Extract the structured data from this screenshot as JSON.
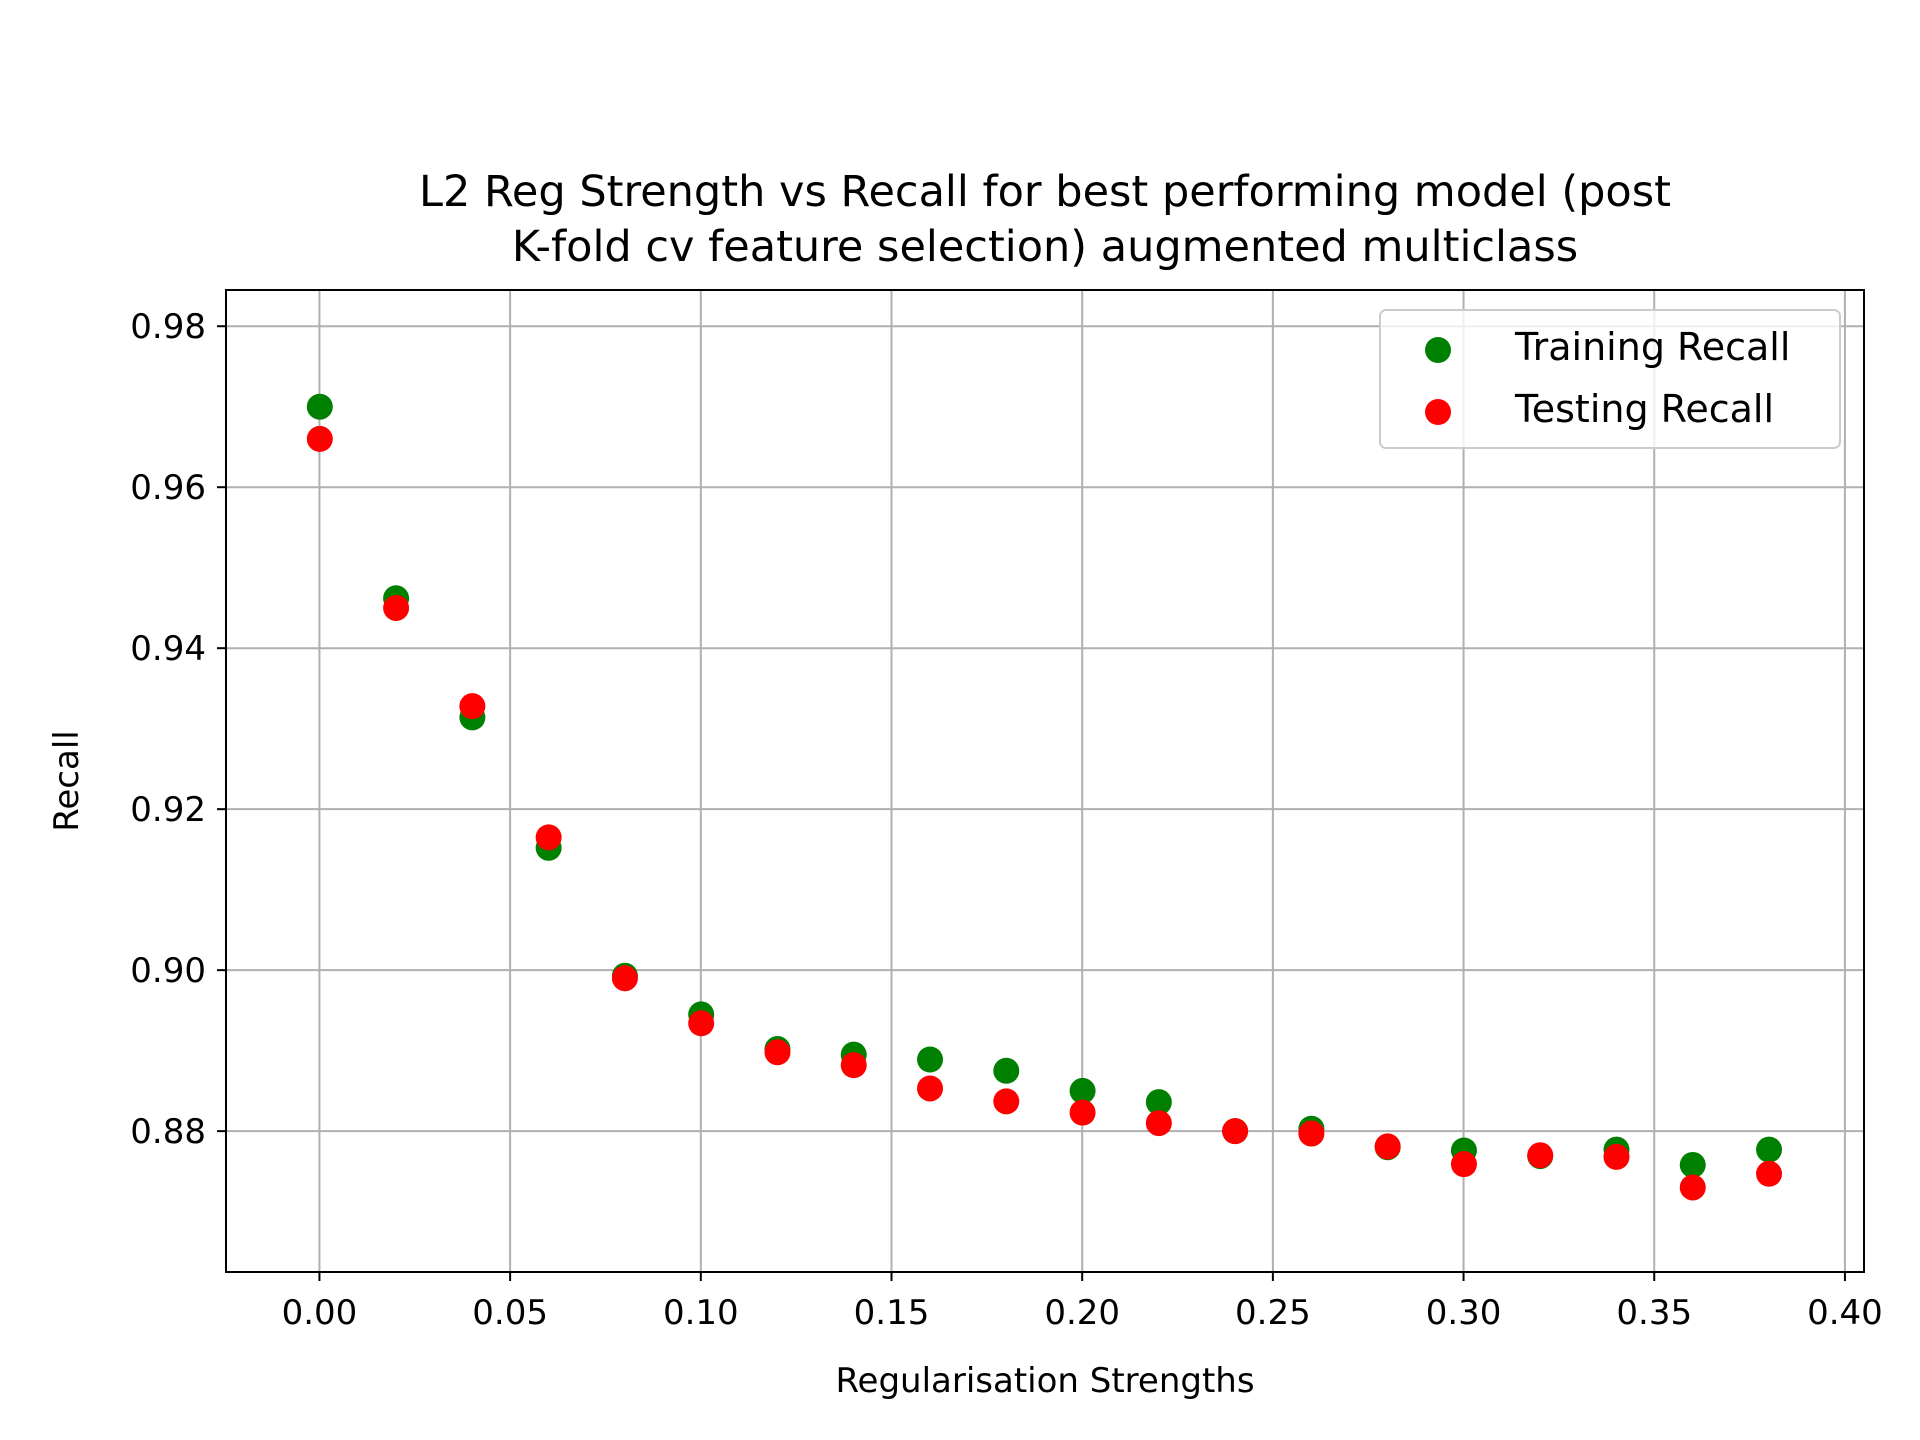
{
  "chart_data": {
    "type": "scatter",
    "title_lines": [
      "L2 Reg Strength vs Recall for best performing model (post",
      "K-fold cv feature selection) augmented multiclass"
    ],
    "xlabel": "Regularisation Strengths",
    "ylabel": "Recall",
    "xlim": [
      -0.0245,
      0.405
    ],
    "ylim": [
      0.8625,
      0.9845
    ],
    "xticks": [
      0.0,
      0.05,
      0.1,
      0.15,
      0.2,
      0.25,
      0.3,
      0.35,
      0.4
    ],
    "xtick_labels": [
      "0.00",
      "0.05",
      "0.10",
      "0.15",
      "0.20",
      "0.25",
      "0.30",
      "0.35",
      "0.40"
    ],
    "yticks": [
      0.88,
      0.9,
      0.92,
      0.94,
      0.96,
      0.98
    ],
    "ytick_labels": [
      "0.88",
      "0.90",
      "0.92",
      "0.94",
      "0.96",
      "0.98"
    ],
    "grid": true,
    "legend_position": "top-right",
    "x": [
      0.0001,
      0.0201,
      0.0401,
      0.0601,
      0.0801,
      0.1001,
      0.1201,
      0.1401,
      0.1601,
      0.1801,
      0.2001,
      0.2201,
      0.2401,
      0.2601,
      0.2801,
      0.3001,
      0.3201,
      0.3401,
      0.3601,
      0.3801
    ],
    "series": [
      {
        "name": "Training Recall",
        "color": "#008000",
        "values": [
          0.97,
          0.9462,
          0.9314,
          0.9152,
          0.8993,
          0.8945,
          0.8902,
          0.8895,
          0.8889,
          0.8875,
          0.885,
          0.8836,
          0.88,
          0.8803,
          0.878,
          0.8776,
          0.8769,
          0.8777,
          0.8758,
          0.8777
        ]
      },
      {
        "name": "Testing Recall",
        "color": "#ff0000",
        "values": [
          0.966,
          0.945,
          0.9328,
          0.9165,
          0.899,
          0.8934,
          0.8898,
          0.8882,
          0.8853,
          0.8837,
          0.8823,
          0.881,
          0.88,
          0.8797,
          0.8781,
          0.8759,
          0.877,
          0.8768,
          0.873,
          0.8747
        ]
      }
    ]
  }
}
